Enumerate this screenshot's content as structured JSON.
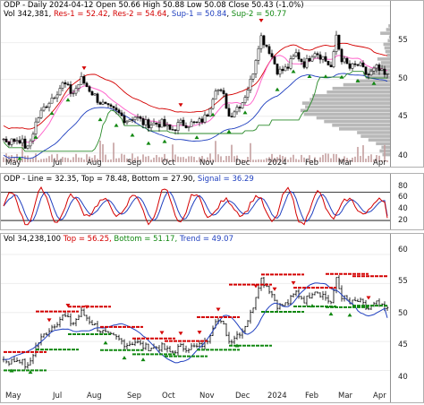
{
  "chart_data": [
    {
      "type": "candlestick",
      "panel": "price",
      "header": {
        "line1_ticker_date": "ODP - Daily 2024-04-12",
        "line1_ohlc": "Open 50.66 High 50.88 Low 50.08 Close 50.43 (-1.0%)",
        "vol": "Vol 342,381",
        "res1": "Res-1 = 52.42",
        "res2": "Res-2 = 54.64",
        "sup1": "Sup-1 = 50.84",
        "sup2": "Sup-2 = 50.77"
      },
      "ylim": [
        39,
        58
      ],
      "yticks": [
        "55",
        "50",
        "45",
        "40"
      ],
      "xticks": [
        "May",
        "Jul",
        "Aug",
        "Sep",
        "Oct",
        "Nov",
        "Dec",
        "2024",
        "Feb",
        "Mar",
        "Apr"
      ],
      "close_anchors": [
        [
          0,
          42
        ],
        [
          10,
          41.5
        ],
        [
          20,
          42
        ],
        [
          30,
          40.5
        ],
        [
          40,
          44.5
        ],
        [
          50,
          46.5
        ],
        [
          60,
          48
        ],
        [
          70,
          49.5
        ],
        [
          80,
          48
        ],
        [
          90,
          50
        ],
        [
          100,
          48.5
        ],
        [
          110,
          47
        ],
        [
          120,
          46
        ],
        [
          130,
          45.5
        ],
        [
          140,
          44.5
        ],
        [
          150,
          45
        ],
        [
          160,
          44
        ],
        [
          170,
          44
        ],
        [
          180,
          44
        ],
        [
          190,
          43
        ],
        [
          200,
          44
        ],
        [
          210,
          44
        ],
        [
          220,
          44
        ],
        [
          230,
          45
        ],
        [
          240,
          49
        ],
        [
          250,
          47.5
        ],
        [
          255,
          45
        ],
        [
          262,
          46
        ],
        [
          270,
          47
        ],
        [
          280,
          50
        ],
        [
          290,
          56
        ],
        [
          300,
          54
        ],
        [
          310,
          51
        ],
        [
          320,
          51.5
        ],
        [
          330,
          53.5
        ],
        [
          340,
          52
        ],
        [
          350,
          54
        ],
        [
          360,
          53
        ],
        [
          370,
          51.5
        ],
        [
          375,
          56
        ],
        [
          380,
          53
        ],
        [
          390,
          51.5
        ],
        [
          400,
          52
        ],
        [
          410,
          50.5
        ],
        [
          420,
          51.5
        ],
        [
          430,
          50.4
        ]
      ],
      "colors": {
        "up": "#000000",
        "down": "#000000",
        "volume_profile": "#b8b8b8",
        "upper_band": "#d40000",
        "lower_band": "#1f3fbf",
        "trailing": "#2a8a2a",
        "ma": "#ff66cc"
      }
    },
    {
      "type": "line",
      "panel": "oscillator",
      "header": {
        "name": "ODP - Line = 32.35,",
        "top": "Top = 78.48,",
        "bottom": "Bottom = 27.90,",
        "signal": "Signal = 36.29"
      },
      "ylim": [
        12,
        95
      ],
      "yticks": [
        "80",
        "60",
        "40",
        "20"
      ],
      "top": 78.48,
      "bottom": 27.9,
      "line_last": 32.35,
      "signal_last": 36.29,
      "colors": {
        "line": "#d40000",
        "signal": "#1f3fbf",
        "bounds": "#000000"
      }
    },
    {
      "type": "line",
      "panel": "trend",
      "header": {
        "vol": "Vol 34,238,100",
        "top": "Top = 56.25,",
        "bottom": "Bottom = 51.17,",
        "trend": "Trend = 49.07"
      },
      "ylim": [
        37,
        62
      ],
      "yticks": [
        "60",
        "55",
        "50",
        "45",
        "40"
      ],
      "top": 56.25,
      "bottom": 51.17,
      "trend": 49.07,
      "colors": {
        "top": "#d40000",
        "bottom": "#118811",
        "trend": "#1f3fbf"
      }
    }
  ]
}
